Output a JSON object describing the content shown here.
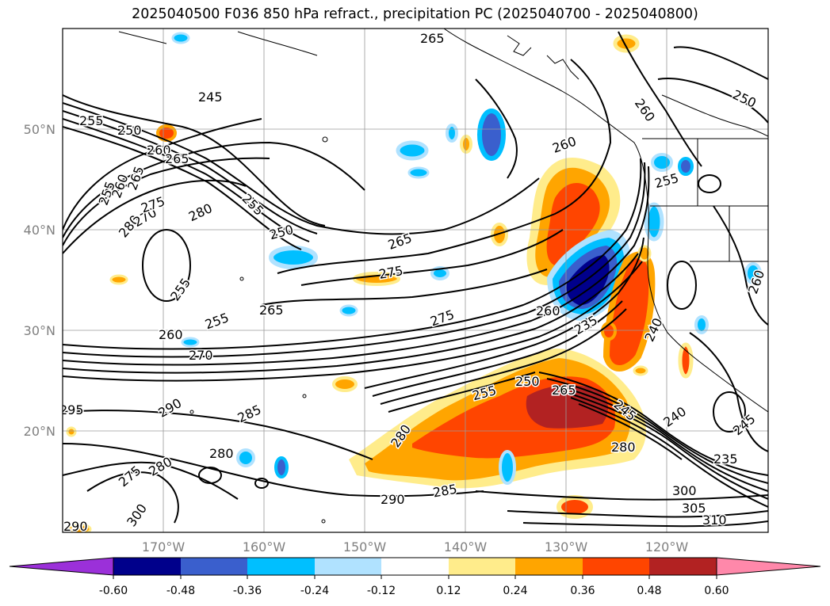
{
  "title": "2025040500 F036 850 hPa refract., precipitation PC (2025040700 - 2025040800)",
  "map": {
    "lat_ticks": [
      "20°N",
      "30°N",
      "40°N",
      "50°N"
    ],
    "lon_ticks": [
      "170°W",
      "160°W",
      "150°W",
      "140°W",
      "130°W",
      "120°W"
    ],
    "contour_labels": [
      {
        "text": "265"
      },
      {
        "text": "245"
      },
      {
        "text": "255"
      },
      {
        "text": "250"
      },
      {
        "text": "260"
      },
      {
        "text": "265"
      },
      {
        "text": "255"
      },
      {
        "text": "260"
      },
      {
        "text": "265"
      },
      {
        "text": "280"
      },
      {
        "text": "270"
      },
      {
        "text": "275"
      },
      {
        "text": "280"
      },
      {
        "text": "255"
      },
      {
        "text": "250"
      },
      {
        "text": "265"
      },
      {
        "text": "275"
      },
      {
        "text": "255"
      },
      {
        "text": "265"
      },
      {
        "text": "255"
      },
      {
        "text": "260"
      },
      {
        "text": "270"
      },
      {
        "text": "275"
      },
      {
        "text": "260"
      },
      {
        "text": "235"
      },
      {
        "text": "250"
      },
      {
        "text": "255"
      },
      {
        "text": "265"
      },
      {
        "text": "245"
      },
      {
        "text": "290"
      },
      {
        "text": "285"
      },
      {
        "text": "295"
      },
      {
        "text": "280"
      },
      {
        "text": "280"
      },
      {
        "text": "275"
      },
      {
        "text": "280"
      },
      {
        "text": "290"
      },
      {
        "text": "285"
      },
      {
        "text": "280"
      },
      {
        "text": "240"
      },
      {
        "text": "240"
      },
      {
        "text": "245"
      },
      {
        "text": "235"
      },
      {
        "text": "300"
      },
      {
        "text": "305"
      },
      {
        "text": "310"
      },
      {
        "text": "290"
      },
      {
        "text": "300"
      },
      {
        "text": "260"
      },
      {
        "text": "255"
      },
      {
        "text": "250"
      },
      {
        "text": "260"
      },
      {
        "text": "260"
      }
    ],
    "colors": {
      "land_coast": "#000000",
      "grid": "#9a9a9a",
      "contour": "#000000"
    }
  },
  "colorbar": {
    "ticks": [
      "-0.60",
      "-0.48",
      "-0.36",
      "-0.24",
      "-0.12",
      "0.12",
      "0.24",
      "0.36",
      "0.48",
      "0.60"
    ],
    "colors": [
      "#9b30d9",
      "#00008b",
      "#3a5fcd",
      "#00bfff",
      "#b0e2ff",
      "#ffffff",
      "#ffec8b",
      "#ffa500",
      "#ff4500",
      "#b22222",
      "#ff88aa"
    ]
  }
}
